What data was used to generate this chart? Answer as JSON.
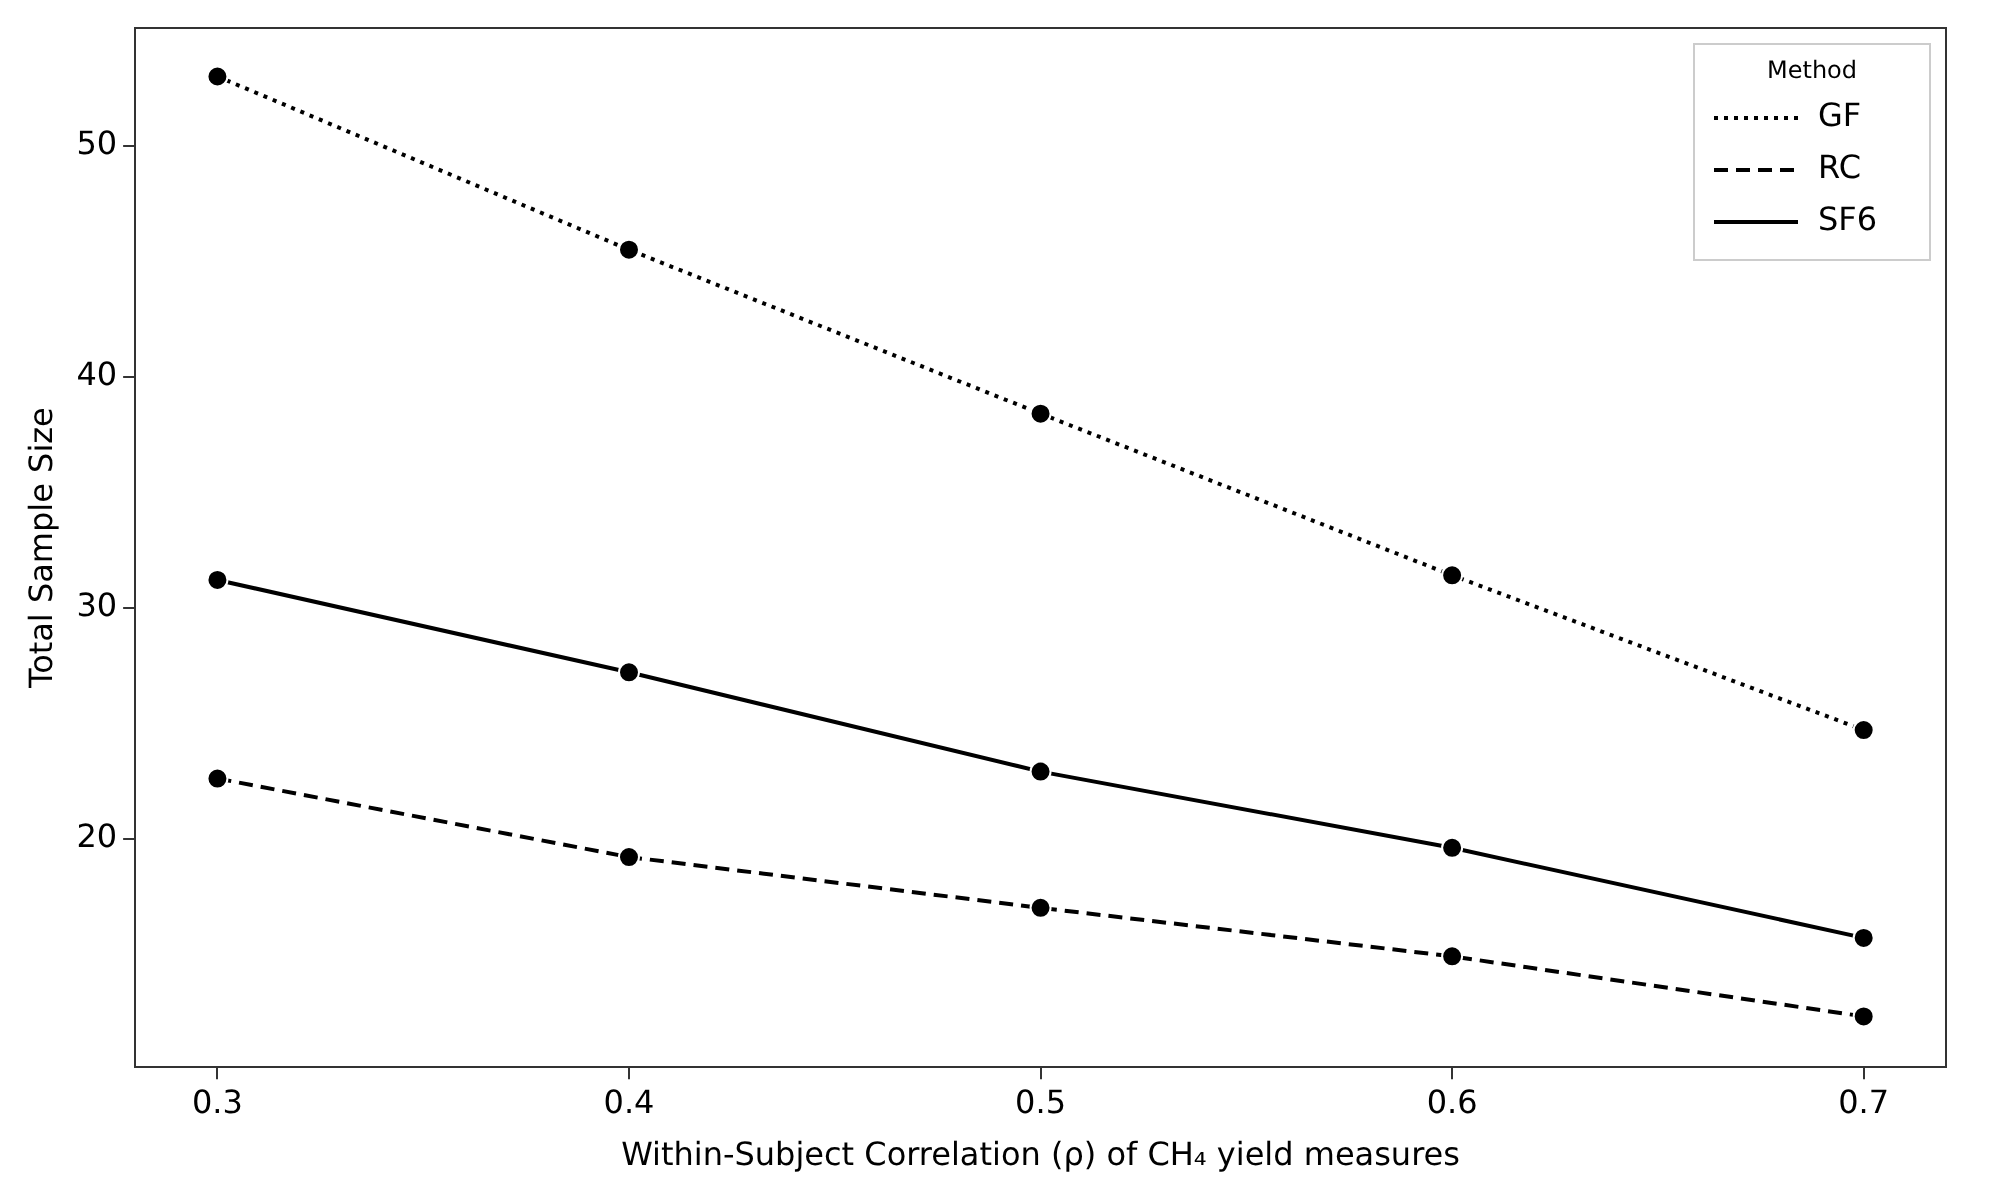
{
  "chart_data": {
    "type": "line",
    "xlabel": "Within-Subject Correlation (ρ) of CH₄ yield measures",
    "ylabel": "Total Sample Size",
    "legend_title": "Method",
    "legend": "top right",
    "grid": false,
    "marker": "circle",
    "x": [
      0.3,
      0.4,
      0.5,
      0.6,
      0.7
    ],
    "xlim": [
      0.28,
      0.72
    ],
    "xticks": [
      0.3,
      0.4,
      0.5,
      0.6,
      0.7
    ],
    "ylim": [
      10.1,
      55.1
    ],
    "yticks": [
      20,
      30,
      40,
      50
    ],
    "series": [
      {
        "name": "GF",
        "color": "#000000",
        "line_style": "dotted",
        "values": [
          53.0,
          45.5,
          38.4,
          31.4,
          24.7
        ]
      },
      {
        "name": "RC",
        "color": "#000000",
        "line_style": "dashed",
        "values": [
          22.6,
          19.2,
          17.0,
          14.9,
          12.3
        ]
      },
      {
        "name": "SF6",
        "color": "#000000",
        "line_style": "solid",
        "values": [
          31.2,
          27.2,
          22.9,
          19.6,
          15.7
        ]
      }
    ]
  }
}
